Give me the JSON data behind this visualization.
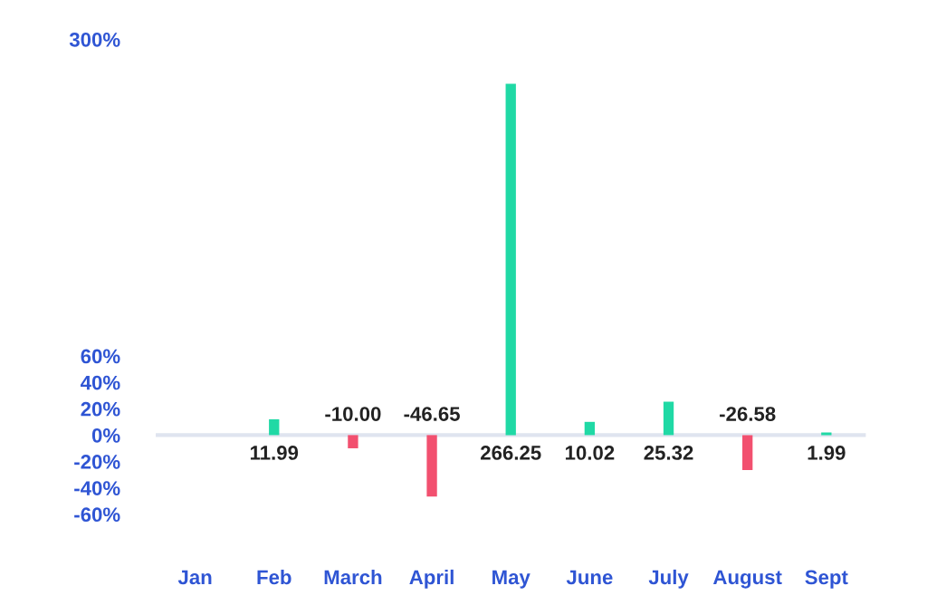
{
  "chart_data": {
    "type": "bar",
    "categories": [
      "Jan",
      "Feb",
      "March",
      "April",
      "May",
      "June",
      "July",
      "August",
      "Sept"
    ],
    "values": [
      null,
      11.99,
      -10.0,
      -46.65,
      266.25,
      10.02,
      25.32,
      -26.58,
      1.99
    ],
    "value_labels": [
      null,
      "11.99",
      "-10.00",
      "-46.65",
      "266.25",
      "10.02",
      "25.32",
      "-26.58",
      "1.99"
    ],
    "colors": [
      "#20d9a5",
      "#20d9a5",
      "#f2506f",
      "#f2506f",
      "#20d9a5",
      "#20d9a5",
      "#20d9a5",
      "#f2506f",
      "#20d9a5"
    ],
    "ylim": [
      -60,
      300
    ],
    "yticks": [
      {
        "value": -60,
        "label": "-60%"
      },
      {
        "value": -40,
        "label": "-40%"
      },
      {
        "value": -20,
        "label": "-20%"
      },
      {
        "value": 0,
        "label": "0%"
      },
      {
        "value": 20,
        "label": "20%"
      },
      {
        "value": 40,
        "label": "40%"
      },
      {
        "value": 60,
        "label": "60%"
      },
      {
        "value": 300,
        "label": "300%"
      }
    ],
    "ref_lines": [
      {
        "axis": "y",
        "value": 0,
        "color": "#dfe4ef"
      }
    ],
    "grid": false,
    "legend": false
  }
}
